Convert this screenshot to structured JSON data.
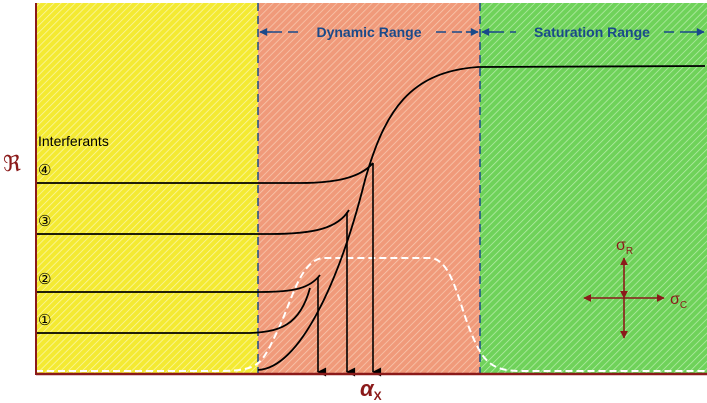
{
  "range_labels": {
    "dynamic": "Dynamic Range",
    "saturation": "Saturation Range"
  },
  "axis": {
    "y_symbol": "ℜ",
    "x_symbol": "α",
    "x_subscript": "X"
  },
  "legend": {
    "title": "Interferants",
    "markers": [
      "①",
      "②",
      "③",
      "④"
    ]
  },
  "sigma": {
    "r_symbol": "σ",
    "r_subscript": "R",
    "c_symbol": "σ",
    "c_subscript": "C"
  },
  "colors": {
    "low_region": "#f7f03a",
    "dynamic_region": "#f2a98a",
    "saturation_region": "#7fd86a",
    "axis": "#8b1a1a",
    "curve": "#000000",
    "range_label": "#1a4a8a",
    "dashed_boundary": "#1a4a8a",
    "distribution": "#ffffff"
  }
}
